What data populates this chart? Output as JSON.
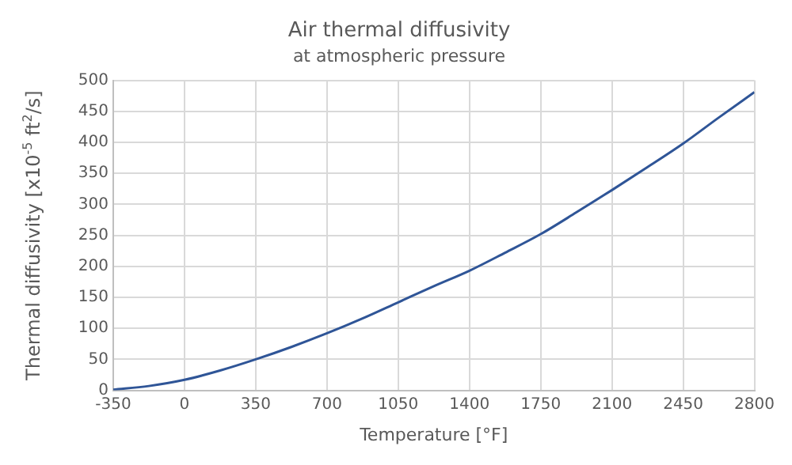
{
  "chart_data": {
    "type": "line",
    "title": "Air thermal diffusivity",
    "subtitle": "at atmospheric pressure",
    "xlabel": "Temperature [°F]",
    "ylabel": "Thermal diffusivity [x10$^{-5}$ ft$^{2}$/s]",
    "x": [
      -350,
      -175,
      0,
      175,
      350,
      525,
      700,
      875,
      1050,
      1225,
      1400,
      1575,
      1750,
      1925,
      2100,
      2275,
      2450,
      2625,
      2800
    ],
    "series": [
      {
        "color": "#2f5597",
        "values": [
          1,
          7,
          17,
          32,
          50,
          70,
          92,
          116,
          142,
          168,
          193,
          222,
          252,
          287,
          323,
          360,
          398,
          440,
          481
        ]
      }
    ],
    "xlim": [
      -350,
      2800
    ],
    "xticks": [
      -350,
      0,
      350,
      700,
      1050,
      1400,
      1750,
      2100,
      2450,
      2800
    ],
    "ylim": [
      0,
      500
    ],
    "yticks": [
      0,
      50,
      100,
      150,
      200,
      250,
      300,
      350,
      400,
      450,
      500
    ],
    "grid": true,
    "legend": false,
    "marker": "none",
    "line_style": "solid"
  }
}
